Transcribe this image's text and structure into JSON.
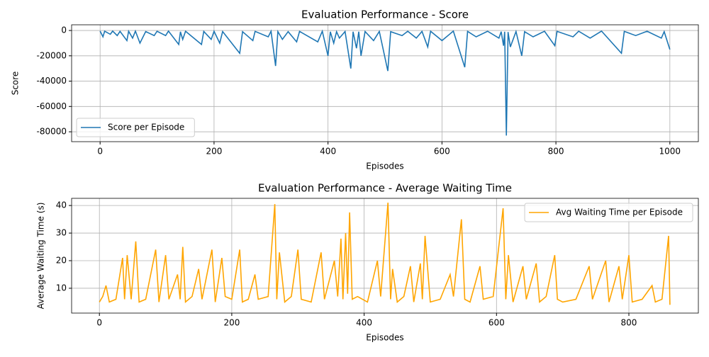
{
  "chart_data": [
    {
      "type": "line",
      "title": "Evaluation Performance - Score",
      "xlabel": "Episodes",
      "ylabel": "Score",
      "xlim": [
        -50,
        1050
      ],
      "ylim": [
        -87800,
        4500
      ],
      "xticks": [
        0,
        200,
        400,
        600,
        800,
        1000
      ],
      "yticks": [
        -80000,
        -60000,
        -40000,
        -20000,
        0
      ],
      "grid": true,
      "legend": "lower left",
      "series": [
        {
          "name": "Score per Episode",
          "color": "#1f77b4",
          "x": [
            0,
            5,
            8,
            18,
            22,
            30,
            35,
            47,
            50,
            57,
            62,
            70,
            80,
            95,
            100,
            115,
            120,
            138,
            141,
            145,
            150,
            178,
            182,
            195,
            200,
            210,
            215,
            245,
            250,
            268,
            272,
            295,
            300,
            308,
            312,
            320,
            330,
            345,
            350,
            382,
            390,
            400,
            404,
            410,
            415,
            420,
            430,
            440,
            444,
            450,
            454,
            458,
            465,
            480,
            490,
            505,
            510,
            530,
            540,
            555,
            565,
            575,
            580,
            600,
            620,
            640,
            645,
            660,
            680,
            700,
            704,
            708,
            710,
            713,
            716,
            720,
            730,
            740,
            745,
            760,
            780,
            798,
            802,
            830,
            840,
            860,
            880,
            915,
            920,
            940,
            960,
            985,
            990,
            1000
          ],
          "values": [
            -500,
            -5000,
            -600,
            -3000,
            -500,
            -4000,
            -700,
            -8000,
            -600,
            -6000,
            -500,
            -10000,
            -800,
            -4000,
            -600,
            -4000,
            -500,
            -11000,
            -1000,
            -7000,
            -600,
            -11000,
            -700,
            -7000,
            -600,
            -10000,
            -800,
            -18000,
            -900,
            -8000,
            -700,
            -5000,
            -600,
            -28000,
            -800,
            -7000,
            -900,
            -9000,
            -700,
            -9000,
            -600,
            -20000,
            -1000,
            -10000,
            -900,
            -6000,
            -800,
            -30000,
            -1000,
            -14000,
            -900,
            -20000,
            -800,
            -8000,
            -700,
            -32000,
            -900,
            -4000,
            -600,
            -6000,
            -700,
            -13000,
            -600,
            -8000,
            -500,
            -29000,
            -700,
            -5000,
            -600,
            -6000,
            -900,
            -12000,
            -1000,
            -83000,
            -1200,
            -13000,
            -800,
            -20000,
            -900,
            -5000,
            -600,
            -12000,
            -700,
            -5000,
            -600,
            -6000,
            -500,
            -18000,
            -700,
            -4000,
            -600,
            -6000,
            -900,
            -15000
          ]
        }
      ]
    },
    {
      "type": "line",
      "title": "Evaluation Performance - Average Waiting Time",
      "xlabel": "Episodes",
      "ylabel": "Average Waiting Time (s)",
      "xlim": [
        -42,
        905
      ],
      "ylim": [
        1,
        42.6
      ],
      "xticks": [
        0,
        200,
        400,
        600,
        800
      ],
      "yticks": [
        10,
        20,
        30,
        40
      ],
      "grid": true,
      "legend": "upper right",
      "series": [
        {
          "name": "Avg Waiting Time per Episode",
          "color": "#ffa500",
          "x": [
            0,
            5,
            10,
            15,
            25,
            35,
            38,
            42,
            48,
            55,
            60,
            70,
            85,
            90,
            100,
            105,
            118,
            122,
            126,
            130,
            140,
            150,
            155,
            170,
            175,
            185,
            190,
            200,
            212,
            216,
            225,
            235,
            240,
            255,
            265,
            268,
            272,
            280,
            290,
            300,
            305,
            320,
            335,
            340,
            355,
            360,
            365,
            368,
            372,
            375,
            378,
            382,
            390,
            405,
            420,
            425,
            436,
            440,
            443,
            450,
            460,
            470,
            475,
            485,
            488,
            492,
            500,
            515,
            530,
            535,
            547,
            552,
            560,
            575,
            580,
            595,
            610,
            614,
            618,
            625,
            640,
            645,
            660,
            665,
            675,
            688,
            692,
            700,
            720,
            740,
            745,
            765,
            770,
            785,
            790,
            800,
            805,
            820,
            835,
            840,
            850,
            860,
            862
          ],
          "values": [
            5,
            7,
            11,
            5,
            6,
            21,
            6,
            22,
            6,
            27,
            5,
            6,
            24,
            5,
            22,
            6,
            15,
            6,
            25,
            5,
            7,
            17,
            6,
            24,
            5,
            21,
            7,
            6,
            24,
            5,
            6,
            15,
            6,
            7,
            40.5,
            6,
            23,
            5,
            7,
            24,
            6,
            5,
            23,
            6,
            20,
            7,
            28,
            6,
            30,
            8,
            37.5,
            6,
            7,
            5,
            20,
            7,
            41,
            6,
            17,
            5,
            7,
            18,
            5,
            19,
            6,
            29,
            5,
            6,
            15,
            7,
            35,
            6,
            5,
            18,
            6,
            7,
            39,
            6,
            22,
            5,
            18,
            6,
            19,
            5,
            7,
            22,
            6,
            5,
            6,
            18,
            6,
            20,
            5,
            18,
            6,
            22,
            5,
            6,
            11,
            5,
            6,
            29,
            4
          ]
        }
      ]
    }
  ]
}
